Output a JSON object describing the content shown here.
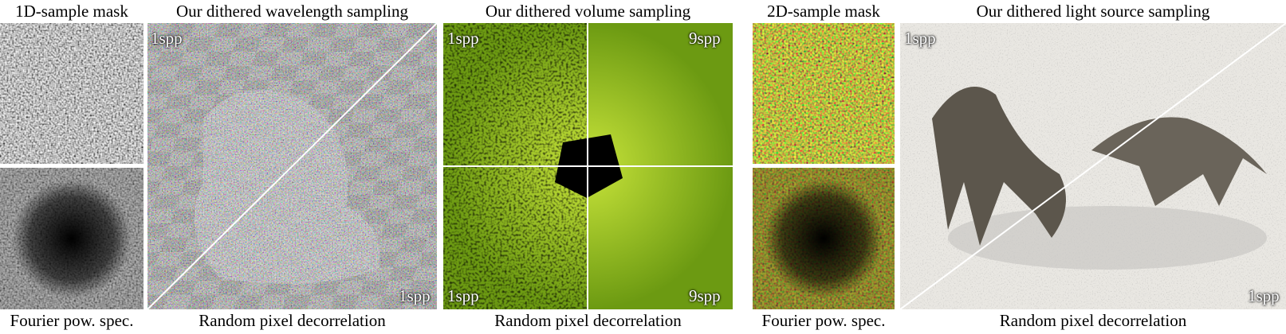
{
  "panels": [
    {
      "top_caption": "1D-sample mask",
      "bottom_caption": "Fourier pow. spec."
    },
    {
      "top_caption": "Our dithered wavelength sampling",
      "bottom_caption": "Random pixel decorrelation",
      "overlays": [
        "1spp",
        "1spp"
      ]
    },
    {
      "top_caption": "Our dithered volume sampling",
      "bottom_caption": "Random pixel decorrelation",
      "overlays": [
        "1spp",
        "9spp",
        "1spp",
        "9spp"
      ]
    },
    {
      "top_caption": "2D-sample mask",
      "bottom_caption": "Fourier pow. spec."
    },
    {
      "top_caption": "Our dithered light source sampling",
      "bottom_caption": "Random pixel decorrelation",
      "overlays": [
        "1spp",
        "1spp"
      ]
    }
  ]
}
